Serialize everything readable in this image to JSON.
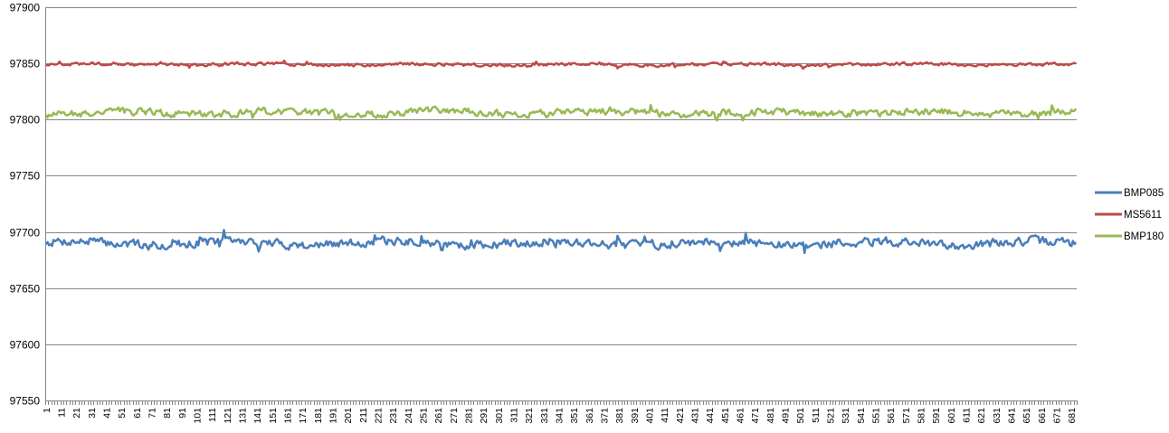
{
  "chart_data": {
    "type": "line",
    "title": "",
    "xlabel": "",
    "ylabel": "",
    "x_count": 684,
    "x_tick_labels": [
      "1",
      "11",
      "21",
      "31",
      "41",
      "51",
      "61",
      "71",
      "81",
      "91",
      "101",
      "111",
      "121",
      "131",
      "141",
      "151",
      "161",
      "171",
      "181",
      "191",
      "201",
      "211",
      "221",
      "231",
      "241",
      "251",
      "261",
      "271",
      "281",
      "291",
      "301",
      "311",
      "321",
      "331",
      "341",
      "351",
      "361",
      "371",
      "381",
      "391",
      "401",
      "411",
      "421",
      "431",
      "441",
      "451",
      "461",
      "471",
      "481",
      "491",
      "501",
      "511",
      "521",
      "531",
      "541",
      "551",
      "561",
      "571",
      "581",
      "591",
      "601",
      "611",
      "621",
      "631",
      "641",
      "651",
      "661",
      "671",
      "681"
    ],
    "ylim": [
      97550,
      97900
    ],
    "y_ticks": [
      "97550",
      "97600",
      "97650",
      "97700",
      "97750",
      "97800",
      "97850",
      "97900"
    ],
    "grid": "horizontal",
    "legend_position": "right",
    "series": [
      {
        "name": "BMP085",
        "color": "#4a7ebb",
        "mean": 97690,
        "amplitude": 6,
        "min": 97677,
        "max": 97703
      },
      {
        "name": "MS5611",
        "color": "#be4b48",
        "mean": 97849,
        "amplitude": 2,
        "min": 97845,
        "max": 97853
      },
      {
        "name": "BMP180",
        "color": "#98b954",
        "mean": 97806,
        "amplitude": 5,
        "min": 97796,
        "max": 97817
      }
    ]
  }
}
